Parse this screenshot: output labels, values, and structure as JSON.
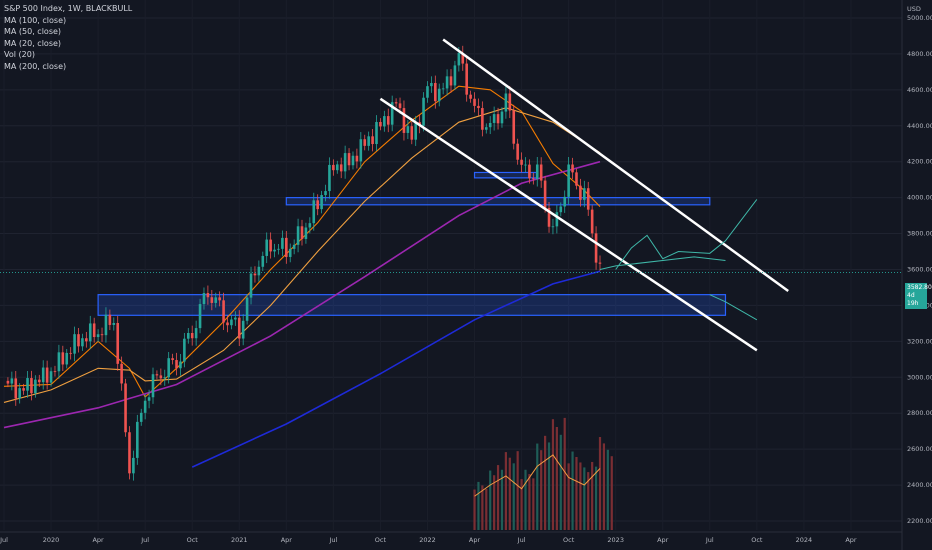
{
  "legend": {
    "title": "S&P 500 Index, 1W, BLACKBULL",
    "indicators": [
      "MA (100, close)",
      "MA (50, close)",
      "MA (20, close)",
      "Vol (20)",
      "MA (200, close)"
    ]
  },
  "currency": "USD",
  "last_price": "3582.80",
  "countdown": "4d 19h",
  "colors": {
    "background": "#131722",
    "up": "#26a69a",
    "down": "#ef5350",
    "ma20": "#f57c00",
    "ma50": "#f0a040",
    "ma100": "#9c27b0",
    "ma200": "#1e2ad8",
    "volume_ma": "#f59b42",
    "trend_lines": "#ffffff",
    "zones": "#2962ff",
    "projection": "#3fb7a8"
  },
  "chart_data": {
    "type": "candlestick",
    "title": "S&P 500 Index, 1W, BLACKBULL",
    "y_unit": "USD",
    "ylim": [
      2150,
      5100
    ],
    "y_ticks": [
      "5000.00",
      "4800.00",
      "4600.00",
      "4400.00",
      "4200.00",
      "4000.00",
      "3800.00",
      "3600.00",
      "3400.00",
      "3200.00",
      "3000.00",
      "2800.00",
      "2600.00",
      "2400.00",
      "2200.00"
    ],
    "x_ticks": [
      "Jul",
      "2020",
      "Apr",
      "Jul",
      "Oct",
      "2021",
      "Apr",
      "Jul",
      "Oct",
      "2022",
      "Apr",
      "Jul",
      "Oct",
      "2023",
      "Apr",
      "Jul",
      "Oct",
      "2024",
      "Apr"
    ],
    "x_range": [
      "2019-07",
      "2024-04"
    ],
    "price_series": {
      "name": "S&P 500 weekly close",
      "x": [
        "2019-07",
        "2019-08",
        "2019-09",
        "2019-10",
        "2019-11",
        "2019-12",
        "2020-01",
        "2020-02",
        "2020-03",
        "2020-04",
        "2020-05",
        "2020-06",
        "2020-07",
        "2020-08",
        "2020-09",
        "2020-10",
        "2020-11",
        "2020-12",
        "2021-01",
        "2021-02",
        "2021-03",
        "2021-04",
        "2021-05",
        "2021-06",
        "2021-07",
        "2021-08",
        "2021-09",
        "2021-10",
        "2021-11",
        "2021-12",
        "2022-01",
        "2022-02",
        "2022-03",
        "2022-04",
        "2022-05",
        "2022-06",
        "2022-07",
        "2022-08",
        "2022-09"
      ],
      "y": [
        2980,
        2920,
        2975,
        3030,
        3140,
        3230,
        3260,
        3330,
        2500,
        2910,
        3040,
        3100,
        3270,
        3500,
        3360,
        3270,
        3620,
        3750,
        3715,
        3810,
        3970,
        4180,
        4200,
        4300,
        4400,
        4520,
        4310,
        4600,
        4580,
        4770,
        4470,
        4370,
        4530,
        4130,
        4130,
        3785,
        4130,
        4000,
        3583
      ]
    },
    "moving_averages": [
      {
        "name": "MA (20, close)",
        "x": [
          "2019-07",
          "2019-10",
          "2020-01",
          "2020-03",
          "2020-04",
          "2020-06",
          "2020-09",
          "2020-12",
          "2021-03",
          "2021-06",
          "2021-09",
          "2021-12",
          "2022-02",
          "2022-04",
          "2022-06",
          "2022-08",
          "2022-09"
        ],
        "y": [
          2950,
          2960,
          3200,
          3050,
          2890,
          3050,
          3310,
          3600,
          3860,
          4200,
          4430,
          4620,
          4600,
          4480,
          4190,
          4040,
          3950
        ]
      },
      {
        "name": "MA (50, close)",
        "x": [
          "2019-07",
          "2019-10",
          "2020-01",
          "2020-03",
          "2020-04",
          "2020-06",
          "2020-09",
          "2020-12",
          "2021-03",
          "2021-06",
          "2021-09",
          "2021-12",
          "2022-03",
          "2022-06",
          "2022-09"
        ],
        "y": [
          2860,
          2930,
          3050,
          3040,
          2980,
          2990,
          3150,
          3400,
          3700,
          3980,
          4220,
          4420,
          4500,
          4420,
          4250
        ]
      },
      {
        "name": "MA (100, close)",
        "x": [
          "2019-07",
          "2020-01",
          "2020-06",
          "2020-12",
          "2021-06",
          "2021-12",
          "2022-04",
          "2022-09"
        ],
        "y": [
          2720,
          2830,
          2960,
          3230,
          3560,
          3900,
          4080,
          4200
        ]
      },
      {
        "name": "MA (200, close)",
        "x": [
          "2020-07",
          "2021-01",
          "2021-07",
          "2022-01",
          "2022-06",
          "2022-09"
        ],
        "y": [
          2500,
          2740,
          3020,
          3320,
          3520,
          3590
        ]
      }
    ],
    "volume": {
      "name": "Vol (20)",
      "x": [
        "2022-01",
        "2022-02",
        "2022-03",
        "2022-04",
        "2022-05",
        "2022-06",
        "2022-07",
        "2022-08",
        "2022-09"
      ],
      "relative": [
        0.45,
        0.6,
        0.72,
        0.55,
        0.85,
        1.0,
        0.7,
        0.6,
        0.82
      ]
    },
    "trend_lines": [
      {
        "name": "upper channel",
        "from": [
          "2021-11",
          4880
        ],
        "to": [
          "2023-09",
          3480
        ]
      },
      {
        "name": "lower channel",
        "from": [
          "2021-07",
          4550
        ],
        "to": [
          "2023-07",
          3150
        ]
      }
    ],
    "zones": [
      {
        "from": "2021-01",
        "to": "2023-04",
        "low": 3960,
        "high": 4000
      },
      {
        "from": "2022-01",
        "to": "2022-05",
        "low": 4110,
        "high": 4140
      },
      {
        "from": "2020-01",
        "to": "2023-05",
        "low": 3345,
        "high": 3460
      }
    ]
  }
}
